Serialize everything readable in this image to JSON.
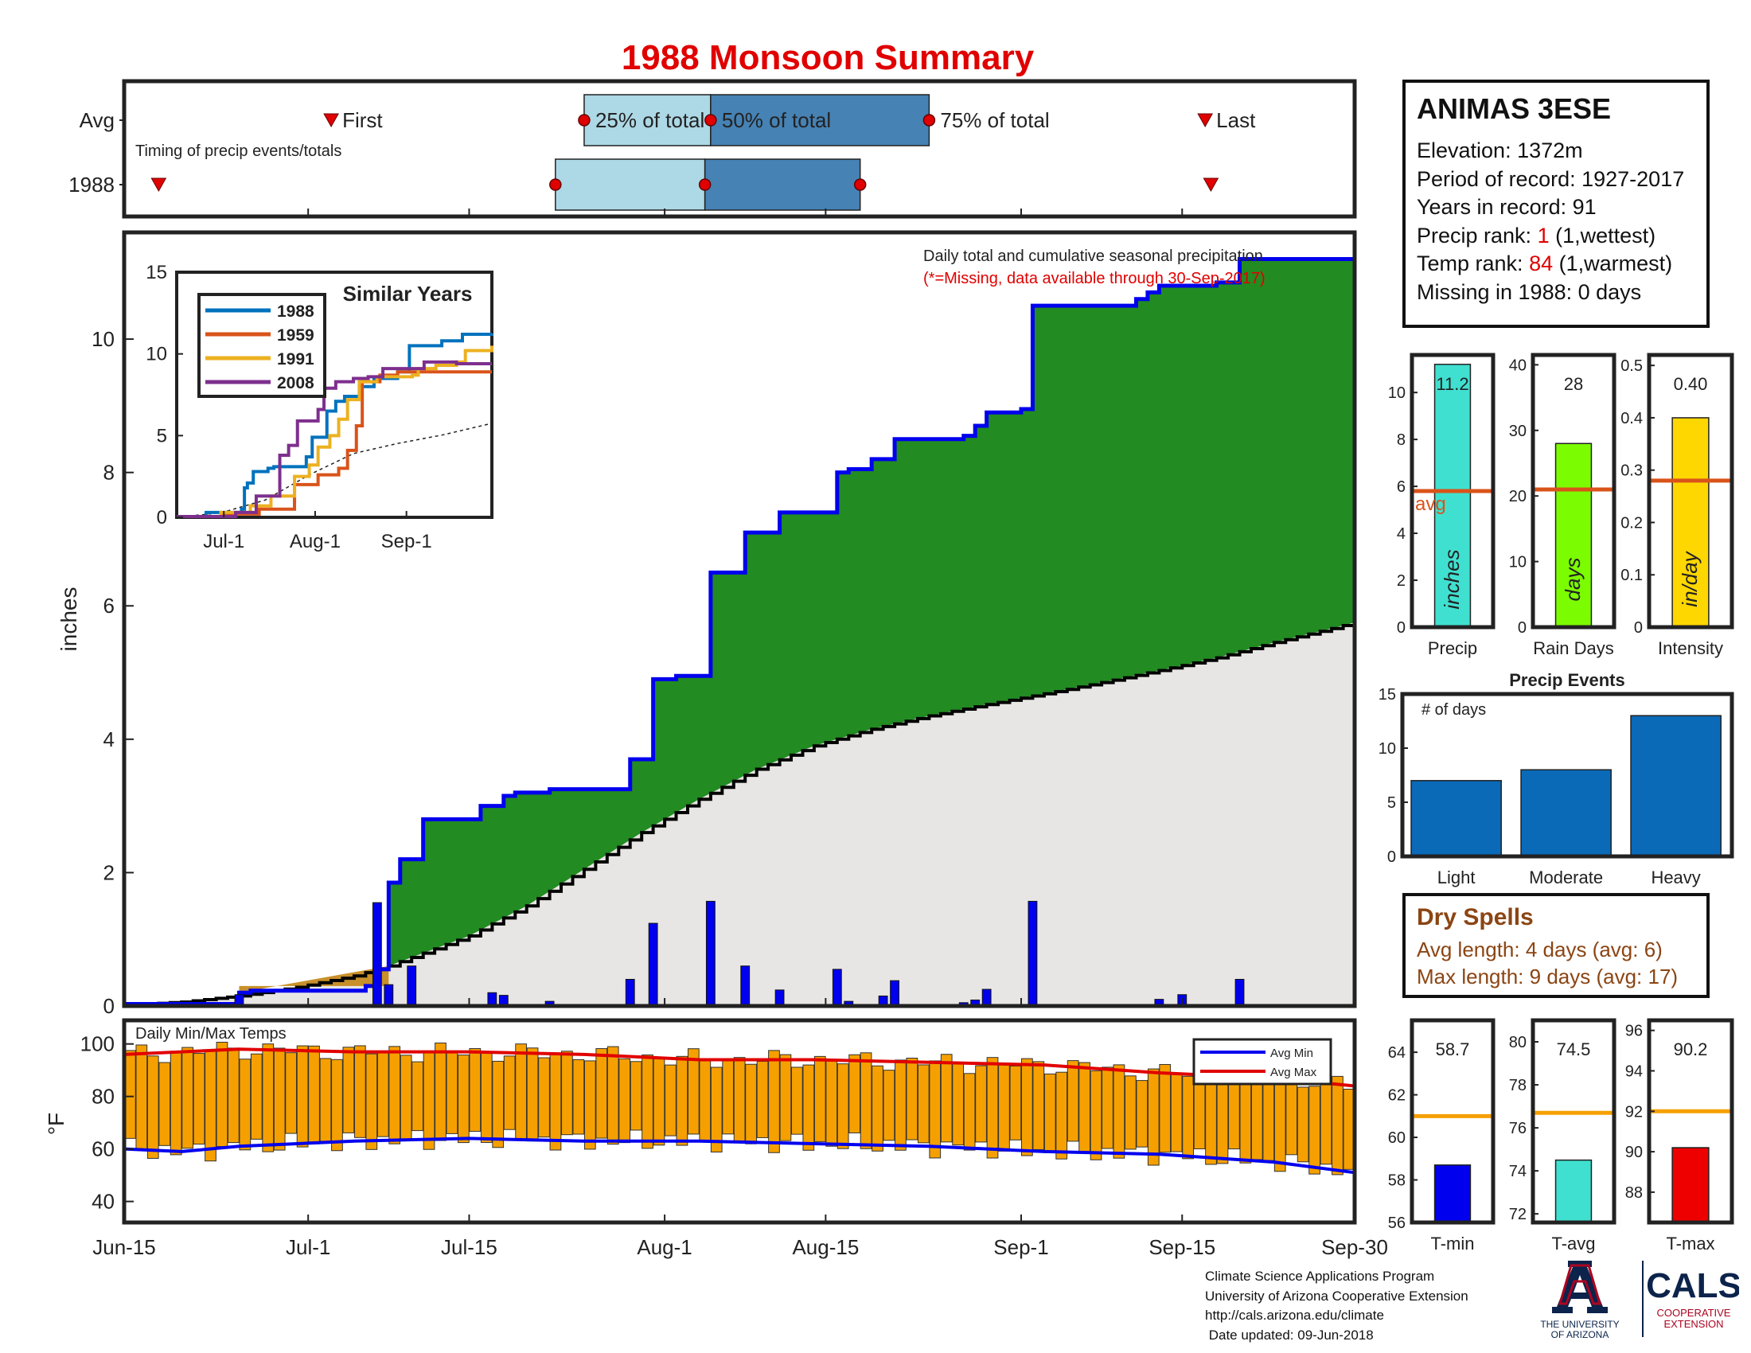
{
  "title": "1988 Monsoon Summary",
  "station": {
    "name": "ANIMAS 3ESE",
    "elevation_label": "Elevation: 1372m",
    "period_label": "Period of record: 1927-2017",
    "years_label": "Years in record: 91",
    "precip_rank_prefix": "Precip rank: ",
    "precip_rank_value": "1",
    "precip_rank_suffix": " (1,wettest)",
    "temp_rank_prefix": "Temp rank: ",
    "temp_rank_value": "84",
    "temp_rank_suffix": " (1,warmest)",
    "missing_label": "Missing in 1988: 0 days"
  },
  "dry_spells": {
    "title": "Dry Spells",
    "avg_length": "Avg length: 4 days (avg: 6)",
    "max_length": "Max length: 9 days (avg: 17)"
  },
  "credits": {
    "line1": "Climate Science Applications Program",
    "line2": "University of Arizona Cooperative Extension",
    "line3": "http://cals.arizona.edu/climate",
    "line4": " Date updated: 09-Jun-2018"
  },
  "logos": {
    "ua_line1": "THE UNIVERSITY",
    "ua_line2": "OF ARIZONA",
    "cals": "CALS",
    "cals_line1": "COOPERATIVE",
    "cals_line2": "EXTENSION"
  },
  "colors": {
    "title_red": "#e00000",
    "cum_1988": "#228b22",
    "cum_line": "#0000ee",
    "climo_fill": "#e8e6e4",
    "daily_bar": "#0000ee",
    "temp_bar": "#f5a000",
    "avg_line": "#d95319",
    "light_blue": "#add8e6",
    "steel_blue": "#4682b4",
    "event_bar": "#0a6ab8",
    "precip_bar": "#40e0d0",
    "days_bar": "#7cfc00",
    "intensity_bar": "#ffd700"
  },
  "chart_data": [
    {
      "id": "timing",
      "type": "bar",
      "title": "",
      "subtitle": "Timing of precip events/totals",
      "rows": [
        "Avg",
        "1988"
      ],
      "labels": {
        "first": "First",
        "last": "Last",
        "p25": "25% of total",
        "p50": "50% of total",
        "p75": "75% of total"
      },
      "x_days": {
        "Avg": {
          "first": 18,
          "p25": 40,
          "p50": 51,
          "p75": 70,
          "last": 94
        },
        "1988": {
          "first": 3,
          "p25": 37.5,
          "p50": 50.5,
          "p75": 64,
          "last": 94.5
        }
      }
    },
    {
      "id": "cumulative_precip",
      "type": "area",
      "title": "Daily total and cumulative seasonal precipitation",
      "note": "(*=Missing, data available through 30-Sep-2017)",
      "xlabel": "",
      "ylabel": "inches",
      "xlim": [
        0,
        107
      ],
      "ylim": [
        0,
        11.6
      ],
      "x_ticks": [
        0,
        16,
        30,
        47,
        61,
        78,
        92,
        107
      ],
      "x_tick_labels": [
        "Jun-15",
        "Jul-1",
        "Jul-15",
        "Aug-1",
        "Aug-15",
        "Sep-1",
        "Sep-15",
        "Sep-30"
      ],
      "y_ticks": [
        0,
        2,
        4,
        6,
        8,
        10
      ],
      "cumulative_1988": [
        [
          0,
          0.03
        ],
        [
          10,
          0.2
        ],
        [
          11,
          0.23
        ],
        [
          21,
          0.3
        ],
        [
          22,
          0.55
        ],
        [
          23,
          1.85
        ],
        [
          24,
          2.2
        ],
        [
          26,
          2.8
        ],
        [
          31,
          3.0
        ],
        [
          33,
          3.15
        ],
        [
          34,
          3.2
        ],
        [
          37,
          3.25
        ],
        [
          43,
          3.25
        ],
        [
          44,
          3.7
        ],
        [
          46,
          4.9
        ],
        [
          48,
          4.95
        ],
        [
          51,
          6.5
        ],
        [
          54,
          7.1
        ],
        [
          57,
          7.4
        ],
        [
          62,
          8.0
        ],
        [
          63,
          8.05
        ],
        [
          65,
          8.2
        ],
        [
          67,
          8.5
        ],
        [
          73,
          8.55
        ],
        [
          74,
          8.7
        ],
        [
          75,
          8.9
        ],
        [
          78,
          8.95
        ],
        [
          79,
          10.5
        ],
        [
          88,
          10.6
        ],
        [
          89,
          10.7
        ],
        [
          90,
          10.8
        ],
        [
          95,
          10.85
        ],
        [
          97,
          11.2
        ],
        [
          107,
          11.25
        ]
      ],
      "climatology": [
        [
          0,
          0.01
        ],
        [
          5,
          0.06
        ],
        [
          10,
          0.15
        ],
        [
          15,
          0.28
        ],
        [
          20,
          0.45
        ],
        [
          23,
          0.6
        ],
        [
          30,
          1.05
        ],
        [
          35,
          1.5
        ],
        [
          40,
          2.05
        ],
        [
          45,
          2.6
        ],
        [
          50,
          3.1
        ],
        [
          55,
          3.55
        ],
        [
          60,
          3.9
        ],
        [
          65,
          4.15
        ],
        [
          70,
          4.35
        ],
        [
          75,
          4.52
        ],
        [
          80,
          4.68
        ],
        [
          85,
          4.85
        ],
        [
          90,
          5.03
        ],
        [
          95,
          5.22
        ],
        [
          100,
          5.45
        ],
        [
          105,
          5.66
        ],
        [
          107,
          5.75
        ]
      ],
      "daily_bars": [
        [
          10,
          0.17
        ],
        [
          22,
          1.55
        ],
        [
          23,
          0.32
        ],
        [
          25,
          0.6
        ],
        [
          32,
          0.2
        ],
        [
          33,
          0.16
        ],
        [
          37,
          0.07
        ],
        [
          44,
          0.4
        ],
        [
          46,
          1.24
        ],
        [
          51,
          1.57
        ],
        [
          54,
          0.6
        ],
        [
          57,
          0.24
        ],
        [
          62,
          0.55
        ],
        [
          63,
          0.07
        ],
        [
          66,
          0.15
        ],
        [
          67,
          0.38
        ],
        [
          73,
          0.05
        ],
        [
          74,
          0.09
        ],
        [
          75,
          0.25
        ],
        [
          79,
          1.57
        ],
        [
          90,
          0.1
        ],
        [
          92,
          0.17
        ],
        [
          97,
          0.4
        ]
      ]
    },
    {
      "id": "similar_years",
      "type": "line",
      "title": "Similar Years",
      "xlim": [
        0,
        107
      ],
      "ylim": [
        0,
        15
      ],
      "y_ticks": [
        0,
        5,
        10,
        15
      ],
      "x_ticks": [
        16,
        47,
        78
      ],
      "x_tick_labels": [
        "Jul-1",
        "Aug-1",
        "Sep-1"
      ],
      "series": [
        {
          "name": "1988",
          "color": "#0072bd",
          "points": [
            [
              0,
              0.05
            ],
            [
              10,
              0.3
            ],
            [
              22,
              0.5
            ],
            [
              23,
              1.8
            ],
            [
              24,
              2.1
            ],
            [
              26,
              2.8
            ],
            [
              31,
              3
            ],
            [
              33,
              3.1
            ],
            [
              44,
              3.7
            ],
            [
              46,
              4.9
            ],
            [
              51,
              6.5
            ],
            [
              54,
              7.1
            ],
            [
              57,
              7.4
            ],
            [
              62,
              8
            ],
            [
              67,
              8.5
            ],
            [
              75,
              8.9
            ],
            [
              79,
              10.5
            ],
            [
              90,
              10.8
            ],
            [
              97,
              11.2
            ],
            [
              107,
              11.25
            ]
          ]
        },
        {
          "name": "1959",
          "color": "#d95319",
          "points": [
            [
              0,
              0.05
            ],
            [
              15,
              0.2
            ],
            [
              28,
              0.5
            ],
            [
              40,
              2.0
            ],
            [
              48,
              2.6
            ],
            [
              55,
              3.0
            ],
            [
              58,
              4.1
            ],
            [
              61,
              5.6
            ],
            [
              63,
              8.3
            ],
            [
              69,
              8.7
            ],
            [
              75,
              8.9
            ],
            [
              80,
              8.9
            ],
            [
              90,
              8.9
            ],
            [
              107,
              8.9
            ]
          ]
        },
        {
          "name": "1991",
          "color": "#edb120",
          "points": [
            [
              0,
              0.05
            ],
            [
              15,
              0.3
            ],
            [
              25,
              0.7
            ],
            [
              32,
              1.3
            ],
            [
              40,
              2.5
            ],
            [
              45,
              3.2
            ],
            [
              48,
              4.3
            ],
            [
              52,
              5.0
            ],
            [
              55,
              6.0
            ],
            [
              58,
              7.2
            ],
            [
              62,
              8.3
            ],
            [
              68,
              8.6
            ],
            [
              80,
              8.7
            ],
            [
              82,
              9.1
            ],
            [
              88,
              9.3
            ],
            [
              95,
              9.5
            ],
            [
              98,
              10.2
            ],
            [
              107,
              10.5
            ]
          ]
        },
        {
          "name": "2008",
          "color": "#7e2f8e",
          "points": [
            [
              0,
              0.05
            ],
            [
              20,
              0.3
            ],
            [
              27,
              1.3
            ],
            [
              35,
              3.8
            ],
            [
              38,
              4.4
            ],
            [
              41,
              5.9
            ],
            [
              45,
              5.9
            ],
            [
              48,
              6.6
            ],
            [
              50,
              7.9
            ],
            [
              54,
              8.3
            ],
            [
              60,
              8.5
            ],
            [
              65,
              8.6
            ],
            [
              70,
              9.1
            ],
            [
              80,
              9.1
            ],
            [
              84,
              9.5
            ],
            [
              90,
              9.5
            ],
            [
              95,
              9.4
            ],
            [
              107,
              9.4
            ]
          ]
        }
      ],
      "climatology": [
        [
          0,
          0
        ],
        [
          15,
          0.28
        ],
        [
          30,
          1.05
        ],
        [
          45,
          2.6
        ],
        [
          60,
          3.9
        ],
        [
          75,
          4.52
        ],
        [
          90,
          5.03
        ],
        [
          107,
          5.75
        ]
      ]
    },
    {
      "id": "daily_temps",
      "type": "bar",
      "title": "Daily Min/Max Temps",
      "ylabel": "°F",
      "xlim": [
        0,
        107
      ],
      "ylim": [
        32,
        109
      ],
      "y_ticks": [
        40,
        60,
        80,
        100
      ],
      "legend": {
        "position": "top-right",
        "entries": [
          {
            "name": "Avg Min",
            "color": "#0000ee"
          },
          {
            "name": "Avg Max",
            "color": "#e00000"
          }
        ]
      },
      "avg_max": [
        [
          0,
          96
        ],
        [
          10,
          98
        ],
        [
          20,
          97
        ],
        [
          30,
          97
        ],
        [
          40,
          96
        ],
        [
          50,
          94
        ],
        [
          60,
          94
        ],
        [
          70,
          93
        ],
        [
          80,
          92
        ],
        [
          90,
          89
        ],
        [
          100,
          87
        ],
        [
          107,
          84
        ]
      ],
      "avg_min": [
        [
          0,
          60
        ],
        [
          5,
          59
        ],
        [
          10,
          61
        ],
        [
          20,
          63
        ],
        [
          30,
          64
        ],
        [
          40,
          63
        ],
        [
          50,
          63
        ],
        [
          60,
          62
        ],
        [
          70,
          61
        ],
        [
          80,
          59
        ],
        [
          90,
          58
        ],
        [
          100,
          55
        ],
        [
          107,
          51
        ]
      ]
    },
    {
      "id": "totals_precip",
      "type": "bar",
      "categories": [
        "Precip"
      ],
      "values": [
        11.2
      ],
      "value_label": "11.2",
      "bar_label": "inches",
      "avg": 5.8,
      "avg_label": "avg",
      "ylim": [
        0,
        11.6
      ],
      "y_ticks": [
        0,
        2,
        4,
        6,
        8,
        10
      ]
    },
    {
      "id": "totals_raindays",
      "type": "bar",
      "categories": [
        "Rain Days"
      ],
      "values": [
        28
      ],
      "value_label": "28",
      "bar_label": "days",
      "avg": 21,
      "ylim": [
        0,
        41.5
      ],
      "y_ticks": [
        0,
        10,
        20,
        30,
        40
      ]
    },
    {
      "id": "totals_intensity",
      "type": "bar",
      "categories": [
        "Intensity"
      ],
      "values": [
        0.4
      ],
      "value_label": "0.40",
      "bar_label": "in/day",
      "avg": 0.28,
      "ylim": [
        0,
        0.52
      ],
      "y_ticks": [
        0,
        0.1,
        0.2,
        0.3,
        0.4,
        0.5
      ]
    },
    {
      "id": "precip_events",
      "type": "bar",
      "title": "Precip Events",
      "annotation": "# of days",
      "categories": [
        "Light",
        "Moderate",
        "Heavy"
      ],
      "values": [
        7,
        8,
        13
      ],
      "ylim": [
        0,
        15
      ],
      "y_ticks": [
        0,
        5,
        10,
        15
      ]
    },
    {
      "id": "tmin",
      "type": "bar",
      "categories": [
        "T-min"
      ],
      "values": [
        58.7
      ],
      "value_label": "58.7",
      "avg": 61,
      "ylim": [
        56,
        65.5
      ],
      "y_ticks": [
        56,
        58,
        60,
        62,
        64
      ]
    },
    {
      "id": "tavg",
      "type": "bar",
      "categories": [
        "T-avg"
      ],
      "values": [
        74.5
      ],
      "value_label": "74.5",
      "avg": 76.7,
      "ylim": [
        71.6,
        81
      ],
      "y_ticks": [
        72,
        74,
        76,
        78,
        80
      ]
    },
    {
      "id": "tmax",
      "type": "bar",
      "categories": [
        "T-max"
      ],
      "values": [
        90.2
      ],
      "value_label": "90.2",
      "avg": 92,
      "ylim": [
        86.5,
        96.5
      ],
      "y_ticks": [
        88,
        90,
        92,
        94,
        96
      ]
    }
  ]
}
